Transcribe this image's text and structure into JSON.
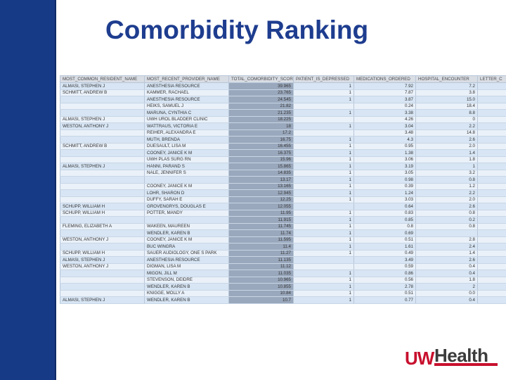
{
  "title": "Comorbidity Ranking",
  "logo": {
    "uw": "UW",
    "health": "Health"
  },
  "table": {
    "columns": [
      "MOST_COMMON_RESIDENT_NAME",
      "MOST_RECENT_PROVIDER_NAME",
      "TOTAL_COMORBIDITY_SCORE",
      "PATIENT_IS_DEPRESSED",
      "MEDICATIONS_ORDERED",
      "HOSPITAL_ENCOUNTER",
      "LETTER_C"
    ],
    "rows": [
      [
        "ALMASI, STEPHEN J",
        "ANESTHESIA RESOURCE",
        "39.965",
        "1",
        "7.92",
        "7.2",
        ""
      ],
      [
        "SCHMITT, ANDREW B",
        "KAMMER, RACHAEL",
        "23.765",
        "1",
        "7.87",
        "3.8",
        ""
      ],
      [
        "",
        "ANESTHESIA RESOURCE",
        "24.545",
        "1",
        "3.87",
        "15.0",
        ""
      ],
      [
        "",
        "HEIKS, SAMUEL J",
        "21.82",
        "",
        "0.24",
        "18.4",
        ""
      ],
      [
        "",
        "MARUNA, CYNTHIA C",
        "21.235",
        "1",
        "3.38",
        "8.8",
        ""
      ],
      [
        "ALMASI, STEPHEN J",
        "UWH UROL BLADDER CLINIC",
        "18.225",
        "",
        "4.26",
        "0",
        ""
      ],
      [
        "WESTON, ANTHONY J",
        "WATTRAUS, VICTORIA E",
        "18",
        "1",
        "3.04",
        "2.2",
        ""
      ],
      [
        "",
        "REIHER, ALEXANDRA E",
        "17.2",
        "",
        "3.48",
        "14.8",
        ""
      ],
      [
        "",
        "MUTH, BRENDA",
        "16.75",
        "1",
        "4.3",
        "2.6",
        ""
      ],
      [
        "SCHMITT, ANDREW B",
        "DUESAULT, LISA M",
        "16.455",
        "1",
        "0.95",
        "2.0",
        ""
      ],
      [
        "",
        "COONEY, JANICE K M",
        "16.375",
        "1",
        "1.38",
        "1.4",
        ""
      ],
      [
        "",
        "UWH PLAS SURG RN",
        "15.96",
        "1",
        "3.06",
        "1.8",
        ""
      ],
      [
        "ALMASI, STEPHEN J",
        "HANNI, PARAND S",
        "15.865",
        "1",
        "3.19",
        "1",
        ""
      ],
      [
        "",
        "NALE, JENNIFER S",
        "14.835",
        "1",
        "3.05",
        "3.2",
        ""
      ],
      [
        "",
        "",
        "13.17",
        "1",
        "0.98",
        "0.8",
        ""
      ],
      [
        "",
        "COONEY, JANICE K M",
        "13.165",
        "1",
        "0.39",
        "1.2",
        ""
      ],
      [
        "",
        "LOHR, SHARON D",
        "12.945",
        "1",
        "1.24",
        "2.2",
        ""
      ],
      [
        "",
        "DUFFY, SARAH E",
        "12.25",
        "1",
        "3.03",
        "2.0",
        ""
      ],
      [
        "SCHUPP, WILLIAM H",
        "GROVENGRYS, DOUGLAS E",
        "12.055",
        "",
        "0.64",
        "2.6",
        ""
      ],
      [
        "SCHUPP, WILLIAM H",
        "POTTER, MANDY",
        "11.95",
        "1",
        "0.83",
        "0.8",
        ""
      ],
      [
        "",
        "",
        "11.915",
        "1",
        "0.85",
        "0.2",
        ""
      ],
      [
        "FLEMING, ELIZABETH A",
        "WAKEEN, MAUREEN",
        "11.745",
        "1",
        "0.8",
        "0.8",
        ""
      ],
      [
        "",
        "WENDLER, KAREN B",
        "11.74",
        "1",
        "0.69",
        "",
        ""
      ],
      [
        "WESTON, ANTHONY J",
        "COONEY, JANICE K M",
        "11.595",
        "1",
        "0.51",
        "2.8",
        ""
      ],
      [
        "",
        "BUC WINGRA",
        "11.4",
        "1",
        "1.61",
        "2.4",
        ""
      ],
      [
        "SCHUPP, WILLIAM H",
        "SAUER AUDIOLOGY, ONE S PARK",
        "11.27",
        "1",
        "0.49",
        "1.4",
        ""
      ],
      [
        "ALMASI, STEPHEN J",
        "ANESTHESIA RESOURCE",
        "11.135",
        "",
        "3.49",
        "2.6",
        ""
      ],
      [
        "WESTON, ANTHONY J",
        "DIGMAN, LISA M",
        "11.12",
        "",
        "0.59",
        "0.4",
        ""
      ],
      [
        "",
        "MIGON, JILL M",
        "11.035",
        "1",
        "0.86",
        "0.4",
        ""
      ],
      [
        "",
        "STEVENSON, DEIDRE",
        "10.965",
        "1",
        "0.56",
        "1.8",
        ""
      ],
      [
        "",
        "WENDLER, KAREN B",
        "10.855",
        "1",
        "2.78",
        "2",
        ""
      ],
      [
        "",
        "KNIGGE, MOLLY A",
        "10.84",
        "1",
        "0.51",
        "0.0",
        ""
      ],
      [
        "ALMASI, STEPHEN J",
        "WENDLER, KAREN B",
        "10.7",
        "1",
        "0.77",
        "0.4",
        ""
      ]
    ]
  }
}
